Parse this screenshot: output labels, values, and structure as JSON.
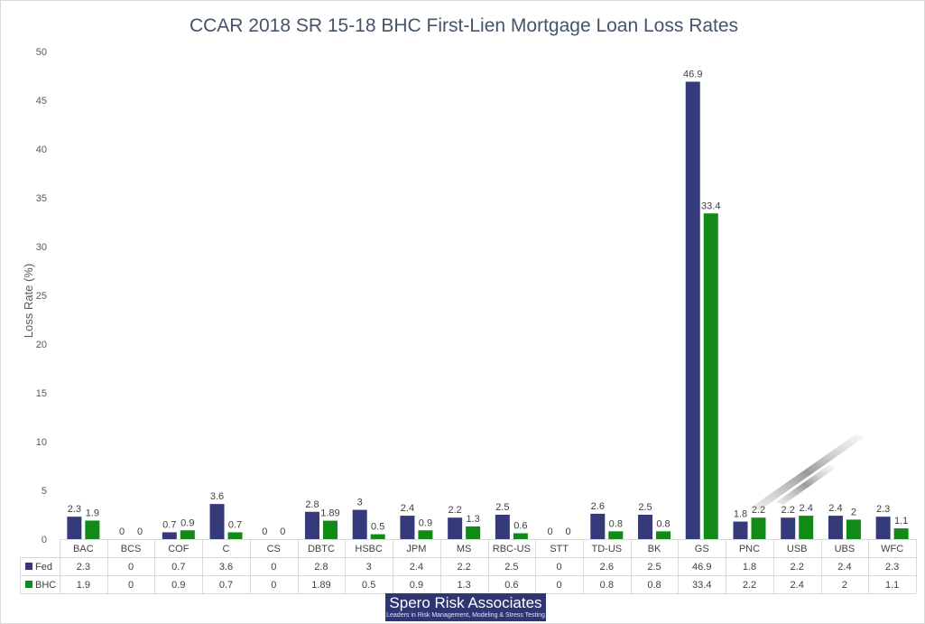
{
  "colors": {
    "fed": "#353b7a",
    "bhc": "#118a17",
    "title": "#44546a",
    "grid": "#d9d9d9"
  },
  "chart_data": {
    "type": "bar",
    "title": "CCAR 2018 SR 15-18 BHC First-Lien Mortgage Loan Loss Rates",
    "ylabel": "Loss Rate (%)",
    "ylim": [
      0,
      50
    ],
    "yticks": [
      0,
      5,
      10,
      15,
      20,
      25,
      30,
      35,
      40,
      45,
      50
    ],
    "grid": "none",
    "legend": "data-table",
    "categories": [
      "BAC",
      "BCS",
      "COF",
      "C",
      "CS",
      "DBTC",
      "HSBC",
      "JPM",
      "MS",
      "RBC-US",
      "STT",
      "TD-US",
      "BK",
      "GS",
      "PNC",
      "USB",
      "UBS",
      "WFC"
    ],
    "series": [
      {
        "name": "Fed",
        "values": [
          2.3,
          0,
          0.7,
          3.6,
          0,
          2.8,
          3,
          2.4,
          2.2,
          2.5,
          0,
          2.6,
          2.5,
          46.9,
          1.8,
          2.2,
          2.4,
          2.3
        ],
        "labels": [
          "2.3",
          "0",
          "0.7",
          "3.6",
          "0",
          "2.8",
          "3",
          "2.4",
          "2.2",
          "2.5",
          "0",
          "2.6",
          "2.5",
          "46.9",
          "1.8",
          "2.2",
          "2.4",
          "2.3"
        ]
      },
      {
        "name": "BHC",
        "values": [
          1.9,
          0,
          0.9,
          0.7,
          0,
          1.89,
          0.5,
          0.9,
          1.3,
          0.6,
          0,
          0.8,
          0.8,
          33.4,
          2.2,
          2.4,
          2,
          1.1
        ],
        "labels": [
          "1.9",
          "0",
          "0.9",
          "0.7",
          "0",
          "1.89",
          "0.5",
          "0.9",
          "1.3",
          "0.6",
          "0",
          "0.8",
          "0.8",
          "33.4",
          "2.2",
          "2.4",
          "2",
          "1.1"
        ]
      }
    ]
  },
  "logo": {
    "title": "Spero Risk Associates",
    "subtitle": "Leaders in Risk Management, Modeling & Stress Testing"
  }
}
